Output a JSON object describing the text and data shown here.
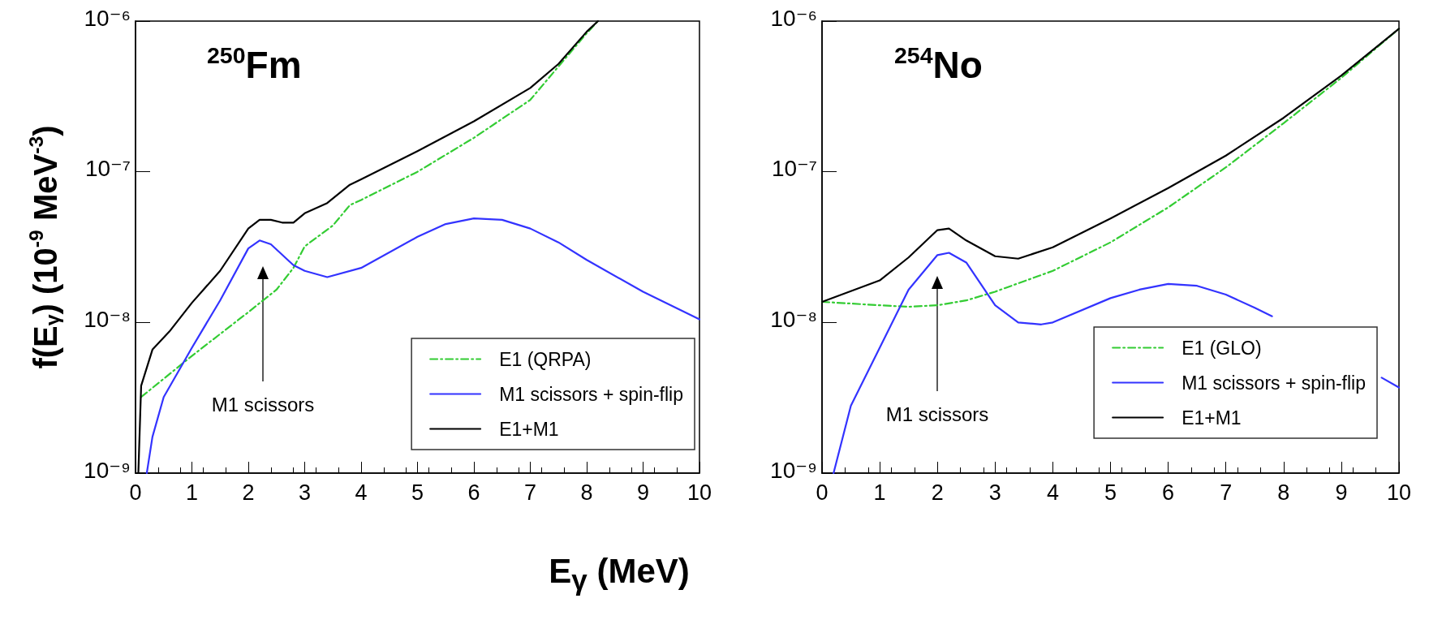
{
  "chart_data": [
    {
      "type": "line",
      "title": "$^{250}$Fm",
      "ylabel": "f(E$_{γ}$) (10$^{-9}$ MeV$^{-3}$)",
      "xlabel": "E$_{γ}$ (MeV)",
      "xlim": [
        0,
        10
      ],
      "ylim": [
        1e-09,
        1e-06
      ],
      "log": "y",
      "xticks": [
        0,
        1,
        2,
        3,
        4,
        5,
        6,
        7,
        8,
        9,
        10
      ],
      "yticks": [
        {
          "value": 1e-09,
          "label": "10⁻⁹"
        },
        {
          "value": 1e-08,
          "label": "10⁻⁸"
        },
        {
          "value": 1e-07,
          "label": "10⁻⁷"
        },
        {
          "value": 1e-06,
          "label": "10⁻⁶"
        }
      ],
      "legend": "bottom right",
      "marker": "none",
      "annotations": [
        "M1 scissors"
      ],
      "series": [
        {
          "name": "E1 (QRPA)",
          "color": "#33cc33",
          "line_style": "dashed",
          "x": [
            0.1,
            1,
            2,
            2.5,
            2.8,
            3,
            3.5,
            3.8,
            4,
            5,
            6,
            7,
            7.5,
            8,
            8.2
          ],
          "values": [
            3.2e-09,
            6e-09,
            1.17e-08,
            1.65e-08,
            2.3e-08,
            3.2e-08,
            4.4e-08,
            6e-08,
            6.5e-08,
            1e-07,
            1.68e-07,
            3e-07,
            5e-07,
            8.3e-07,
            1e-06
          ]
        },
        {
          "name": "M1 scissors + spin-flip",
          "color": "#3333ff",
          "x": [
            0.2,
            0.3,
            0.5,
            1,
            1.5,
            2,
            2.2,
            2.4,
            2.8,
            3,
            3.4,
            4,
            5,
            5.5,
            6,
            6.5,
            7,
            7.5,
            8,
            9,
            10
          ],
          "values": [
            1e-09,
            1.74e-09,
            3.2e-09,
            6.8e-09,
            1.4e-08,
            3.1e-08,
            3.5e-08,
            3.3e-08,
            2.4e-08,
            2.2e-08,
            2e-08,
            2.3e-08,
            3.7e-08,
            4.5e-08,
            4.9e-08,
            4.8e-08,
            4.2e-08,
            3.4e-08,
            2.6e-08,
            1.6e-08,
            1.05e-08
          ]
        },
        {
          "name": "E1+M1",
          "color": "#000000",
          "x": [
            0.05,
            0.1,
            0.3,
            0.6,
            1,
            1.5,
            2,
            2.2,
            2.4,
            2.6,
            2.8,
            3,
            3.4,
            3.8,
            4,
            5,
            6,
            7,
            7.5,
            8,
            8.2
          ],
          "values": [
            1e-09,
            3.8e-09,
            6.6e-09,
            8.7e-09,
            1.35e-08,
            2.2e-08,
            4.2e-08,
            4.8e-08,
            4.8e-08,
            4.6e-08,
            4.6e-08,
            5.3e-08,
            6.2e-08,
            8.2e-08,
            8.9e-08,
            1.37e-07,
            2.16e-07,
            3.6e-07,
            5.2e-07,
            8.5e-07,
            1e-06
          ]
        }
      ]
    },
    {
      "type": "line",
      "title": "$^{254}$No",
      "xlim": [
        0,
        10
      ],
      "ylim": [
        1e-09,
        1e-06
      ],
      "log": "y",
      "xticks": [
        0,
        1,
        2,
        3,
        4,
        5,
        6,
        7,
        8,
        9,
        10
      ],
      "yticks": [
        {
          "value": 1e-09,
          "label": "10⁻⁹"
        },
        {
          "value": 1e-08,
          "label": "10⁻⁸"
        },
        {
          "value": 1e-07,
          "label": "10⁻⁷"
        },
        {
          "value": 1e-06,
          "label": "10⁻⁶"
        }
      ],
      "legend": "bottom right",
      "marker": "none",
      "annotations": [
        "M1 scissors"
      ],
      "series": [
        {
          "name": "E1 (GLO)",
          "color": "#33cc33",
          "line_style": "dashed",
          "x": [
            0,
            1,
            1.5,
            2,
            2.5,
            3,
            4,
            5,
            6,
            7,
            8,
            9,
            10
          ],
          "values": [
            1.37e-08,
            1.3e-08,
            1.27e-08,
            1.3e-08,
            1.4e-08,
            1.6e-08,
            2.2e-08,
            3.4e-08,
            5.8e-08,
            1.07e-07,
            2.1e-07,
            4.2e-07,
            8.9e-07
          ]
        },
        {
          "name": "M1 scissors + spin-flip",
          "color": "#3333ff",
          "x": [
            0.2,
            0.5,
            1,
            1.5,
            2,
            2.2,
            2.5,
            3,
            3.4,
            3.8,
            4,
            5,
            5.5,
            6,
            6.5,
            7,
            7.5,
            7.8,
            8.5,
            9,
            9.7,
            10
          ],
          "values": [
            1e-09,
            2.8e-09,
            6.8e-09,
            1.65e-08,
            2.8e-08,
            2.9e-08,
            2.5e-08,
            1.3e-08,
            1e-08,
            9.7e-09,
            1e-08,
            1.45e-08,
            1.65e-08,
            1.8e-08,
            1.75e-08,
            1.53e-08,
            1.25e-08,
            1.1e-08,
            null,
            null,
            4.3e-09,
            3.7e-09
          ]
        },
        {
          "name": "E1+M1",
          "color": "#000000",
          "x": [
            0,
            1,
            1.5,
            2,
            2.2,
            2.5,
            3,
            3.4,
            4,
            5,
            6,
            7,
            8,
            9,
            10
          ],
          "values": [
            1.37e-08,
            1.9e-08,
            2.7e-08,
            4.1e-08,
            4.2e-08,
            3.5e-08,
            2.75e-08,
            2.65e-08,
            3.15e-08,
            4.9e-08,
            7.8e-08,
            1.28e-07,
            2.28e-07,
            4.35e-07,
            8.9e-07
          ]
        }
      ]
    }
  ]
}
